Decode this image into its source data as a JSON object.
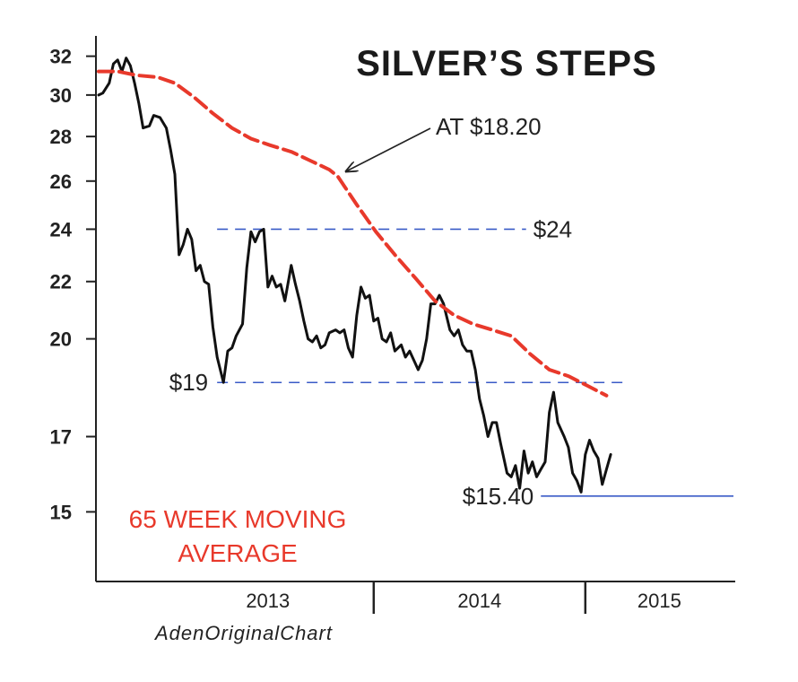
{
  "chart_data": {
    "type": "line",
    "title": "SILVER’S STEPS",
    "credit": "AdenOriginalChart",
    "y_ticks": [
      32,
      30,
      28,
      26,
      24,
      22,
      20,
      17,
      15
    ],
    "x_year_labels": [
      {
        "label": "2013",
        "x": 2013.3
      },
      {
        "label": "2014",
        "x": 2014.3
      },
      {
        "label": "2015",
        "x": 2015.15
      }
    ],
    "x_year_dividers": [
      2013.8,
      2014.8
    ],
    "xlim": [
      2012.5,
      2015.5
    ],
    "ylim": [
      13.4,
      34
    ],
    "series": [
      {
        "key": "price",
        "color": "#111111",
        "values": [
          [
            2012.5,
            30.0
          ],
          [
            2012.52,
            30.1
          ],
          [
            2012.55,
            30.6
          ],
          [
            2012.57,
            31.6
          ],
          [
            2012.59,
            31.8
          ],
          [
            2012.61,
            31.2
          ],
          [
            2012.63,
            31.9
          ],
          [
            2012.65,
            31.5
          ],
          [
            2012.67,
            30.6
          ],
          [
            2012.69,
            29.6
          ],
          [
            2012.71,
            28.4
          ],
          [
            2012.74,
            28.5
          ],
          [
            2012.76,
            29.0
          ],
          [
            2012.79,
            28.9
          ],
          [
            2012.82,
            28.4
          ],
          [
            2012.84,
            27.4
          ],
          [
            2012.86,
            26.3
          ],
          [
            2012.88,
            23.0
          ],
          [
            2012.9,
            23.4
          ],
          [
            2012.92,
            24.0
          ],
          [
            2012.94,
            23.6
          ],
          [
            2012.96,
            22.4
          ],
          [
            2012.98,
            22.6
          ],
          [
            2013.0,
            22.0
          ],
          [
            2013.02,
            21.9
          ],
          [
            2013.04,
            20.4
          ],
          [
            2013.06,
            19.4
          ],
          [
            2013.09,
            18.6
          ],
          [
            2013.11,
            19.6
          ],
          [
            2013.13,
            19.7
          ],
          [
            2013.15,
            20.1
          ],
          [
            2013.18,
            20.5
          ],
          [
            2013.2,
            22.5
          ],
          [
            2013.22,
            23.9
          ],
          [
            2013.24,
            23.5
          ],
          [
            2013.26,
            23.9
          ],
          [
            2013.28,
            24.0
          ],
          [
            2013.3,
            21.8
          ],
          [
            2013.32,
            22.2
          ],
          [
            2013.34,
            21.8
          ],
          [
            2013.36,
            21.9
          ],
          [
            2013.38,
            21.3
          ],
          [
            2013.41,
            22.6
          ],
          [
            2013.43,
            21.9
          ],
          [
            2013.45,
            21.3
          ],
          [
            2013.47,
            20.6
          ],
          [
            2013.49,
            20.0
          ],
          [
            2013.51,
            19.9
          ],
          [
            2013.53,
            20.1
          ],
          [
            2013.55,
            19.7
          ],
          [
            2013.57,
            19.8
          ],
          [
            2013.59,
            20.2
          ],
          [
            2013.62,
            20.3
          ],
          [
            2013.64,
            20.2
          ],
          [
            2013.66,
            20.3
          ],
          [
            2013.68,
            19.7
          ],
          [
            2013.7,
            19.4
          ],
          [
            2013.72,
            20.8
          ],
          [
            2013.74,
            21.8
          ],
          [
            2013.76,
            21.4
          ],
          [
            2013.78,
            21.5
          ],
          [
            2013.8,
            20.6
          ],
          [
            2013.82,
            20.7
          ],
          [
            2013.84,
            20.0
          ],
          [
            2013.86,
            19.9
          ],
          [
            2013.88,
            20.2
          ],
          [
            2013.9,
            19.6
          ],
          [
            2013.93,
            19.8
          ],
          [
            2013.95,
            19.4
          ],
          [
            2013.97,
            19.6
          ],
          [
            2013.99,
            19.3
          ],
          [
            2014.01,
            19.0
          ],
          [
            2014.03,
            19.3
          ],
          [
            2014.05,
            20.0
          ],
          [
            2014.07,
            21.2
          ],
          [
            2014.09,
            21.2
          ],
          [
            2014.11,
            21.5
          ],
          [
            2014.13,
            21.2
          ],
          [
            2014.16,
            20.3
          ],
          [
            2014.18,
            20.1
          ],
          [
            2014.2,
            20.3
          ],
          [
            2014.22,
            19.8
          ],
          [
            2014.24,
            19.6
          ],
          [
            2014.26,
            19.6
          ],
          [
            2014.28,
            19.0
          ],
          [
            2014.3,
            18.1
          ],
          [
            2014.32,
            17.6
          ],
          [
            2014.34,
            17.0
          ],
          [
            2014.36,
            17.4
          ],
          [
            2014.38,
            17.4
          ],
          [
            2014.4,
            16.8
          ],
          [
            2014.43,
            16.0
          ],
          [
            2014.45,
            15.9
          ],
          [
            2014.47,
            16.2
          ],
          [
            2014.49,
            15.6
          ],
          [
            2014.51,
            16.6
          ],
          [
            2014.53,
            16.0
          ],
          [
            2014.55,
            16.3
          ],
          [
            2014.57,
            15.9
          ],
          [
            2014.59,
            16.1
          ],
          [
            2014.61,
            16.3
          ],
          [
            2014.63,
            17.7
          ],
          [
            2014.65,
            18.3
          ],
          [
            2014.67,
            17.4
          ],
          [
            2014.7,
            17.0
          ],
          [
            2014.72,
            16.7
          ],
          [
            2014.74,
            16.0
          ],
          [
            2014.76,
            15.8
          ],
          [
            2014.78,
            15.5
          ],
          [
            2014.8,
            16.5
          ],
          [
            2014.82,
            16.9
          ],
          [
            2014.84,
            16.6
          ],
          [
            2014.86,
            16.4
          ],
          [
            2014.88,
            15.7
          ],
          [
            2014.9,
            16.1
          ],
          [
            2014.92,
            16.5
          ]
        ]
      },
      {
        "key": "ma",
        "name": "65 WEEK MOVING AVERAGE",
        "color": "#e8392b",
        "values": [
          [
            2012.5,
            31.2
          ],
          [
            2012.59,
            31.2
          ],
          [
            2012.68,
            31.0
          ],
          [
            2012.78,
            30.9
          ],
          [
            2012.86,
            30.6
          ],
          [
            2012.95,
            29.9
          ],
          [
            2013.04,
            29.1
          ],
          [
            2013.13,
            28.4
          ],
          [
            2013.22,
            27.9
          ],
          [
            2013.31,
            27.6
          ],
          [
            2013.41,
            27.3
          ],
          [
            2013.5,
            26.9
          ],
          [
            2013.59,
            26.5
          ],
          [
            2013.63,
            26.2
          ],
          [
            2013.72,
            25.0
          ],
          [
            2013.81,
            23.9
          ],
          [
            2013.9,
            23.0
          ],
          [
            2014.0,
            22.1
          ],
          [
            2014.09,
            21.3
          ],
          [
            2014.18,
            20.8
          ],
          [
            2014.27,
            20.5
          ],
          [
            2014.36,
            20.3
          ],
          [
            2014.45,
            20.1
          ],
          [
            2014.54,
            19.5
          ],
          [
            2014.63,
            19.0
          ],
          [
            2014.72,
            18.8
          ],
          [
            2014.81,
            18.5
          ],
          [
            2014.9,
            18.2
          ]
        ]
      }
    ],
    "reference_lines": [
      {
        "key": "r24",
        "label": "$24",
        "y": 24.0,
        "x_start": 2013.06,
        "x_end": 2014.52,
        "style": "dashed",
        "color": "#3a5bc7"
      },
      {
        "key": "r19",
        "label": "$19",
        "y": 18.6,
        "x_start": 2013.06,
        "x_end": 2014.98,
        "style": "dashed",
        "color": "#3a5bc7"
      },
      {
        "key": "r1540",
        "label": "$15.40",
        "y": 15.4,
        "x_start": 2014.59,
        "x_end": 2015.5,
        "style": "solid",
        "color": "#3a5bc7"
      }
    ],
    "annotations": [
      {
        "text": "AT $18.20",
        "arrow_to": [
          2013.63,
          26.2
        ]
      }
    ]
  }
}
